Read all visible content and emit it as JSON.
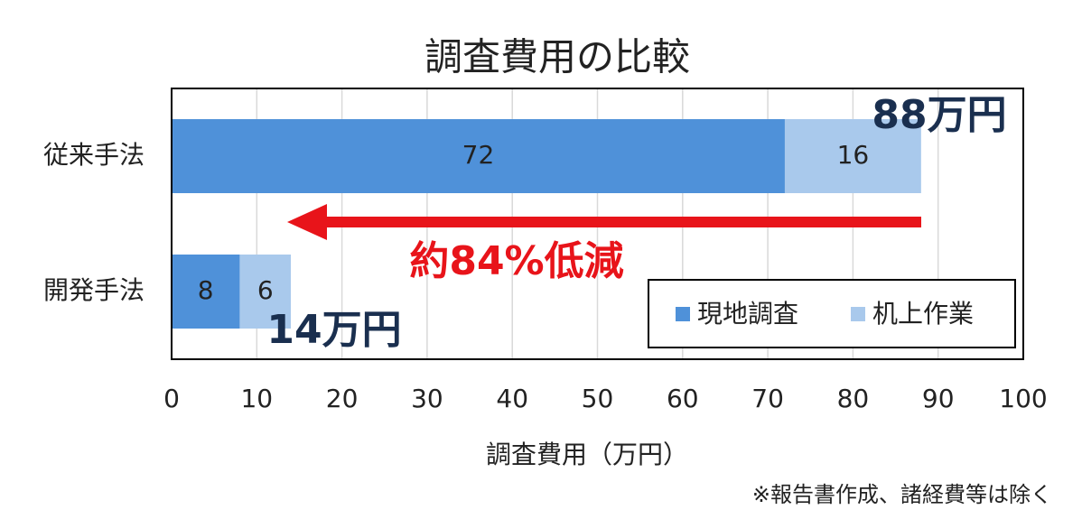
{
  "chart_data": {
    "type": "stacked-barh",
    "title": "調査費用の比較",
    "x_label": "調査費用（万円）",
    "categories": [
      "従来手法",
      "開発手法"
    ],
    "series": [
      {
        "name": "現地調査",
        "color": "#4f91d9",
        "values": [
          72,
          8
        ]
      },
      {
        "name": "机上作業",
        "color": "#a9c9ec",
        "values": [
          16,
          6
        ]
      }
    ],
    "xlim": [
      0,
      100
    ],
    "xticks": [
      0,
      10,
      20,
      30,
      40,
      50,
      60,
      70,
      80,
      90,
      100
    ],
    "grid": true,
    "legend": "bottom-right",
    "annotations": [
      "88万円",
      "14万円",
      "約84%低減"
    ],
    "footnote": "※報告書作成、諸経費等は除く"
  }
}
